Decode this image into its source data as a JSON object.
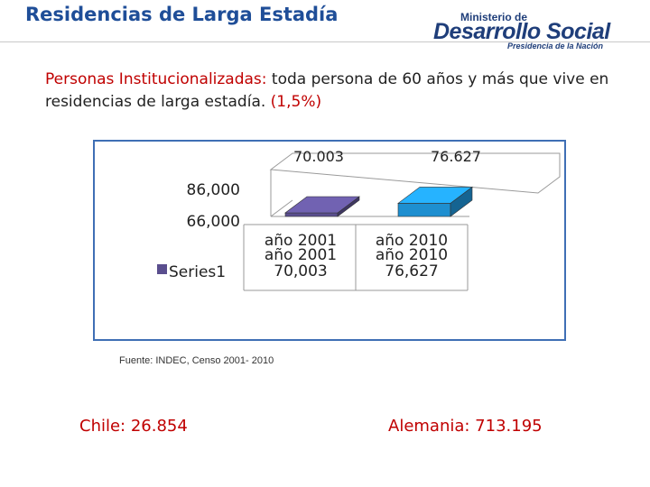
{
  "header": {
    "title": "Residencias de Larga Estadía"
  },
  "logo": {
    "line1": "Ministerio de",
    "line2": "Desarrollo Social",
    "line3": "Presidencia de la Nación"
  },
  "intro": {
    "highlight": "Personas Institucionalizadas:",
    "body": " toda persona de 60 años y más que vive en residencias de larga estadía.",
    "percent": "(1,5%)"
  },
  "chart_data": {
    "type": "bar",
    "categories": [
      "año 2001",
      "año 2010"
    ],
    "series": [
      {
        "name": "Series1",
        "values": [
          70003,
          76627
        ]
      }
    ],
    "top_labels": [
      "70.003",
      "76.627"
    ],
    "table_values": [
      "70,003",
      "76,627"
    ],
    "y_ticks": [
      "86,000",
      "66,000"
    ],
    "bar_colors": [
      "#5a4e8e",
      "#1e8fd0"
    ],
    "legend_swatch_color": "#5a4e8e",
    "title": "",
    "xlabel": "",
    "ylabel": ""
  },
  "source": {
    "text": "Fuente: INDEC, Censo 2001- 2010"
  },
  "footer": {
    "left": "Chile: 26.854",
    "right": "Alemania: 713.195"
  }
}
